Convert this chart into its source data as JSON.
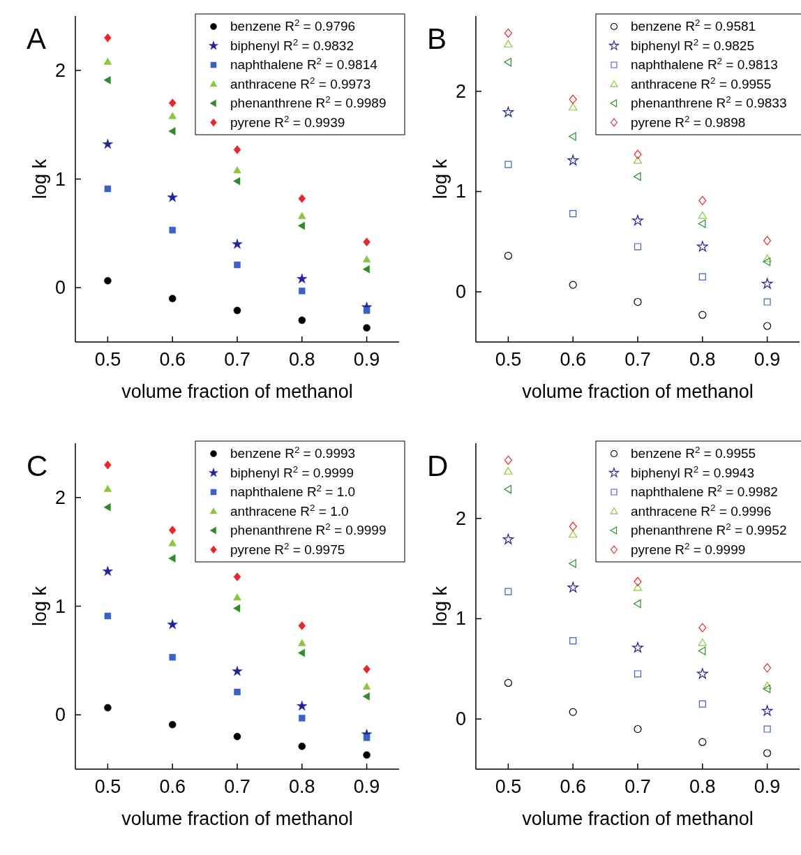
{
  "chart_data": [
    {
      "type": "scatter",
      "title": "A",
      "xlabel": "volume fraction of methanol",
      "ylabel": "log k",
      "x": [
        0.5,
        0.6,
        0.7,
        0.8,
        0.9
      ],
      "xlim": [
        0.45,
        0.95
      ],
      "xticks": [
        0.5,
        0.6,
        0.7,
        0.8,
        0.9
      ],
      "ylim": [
        -0.5,
        2.5
      ],
      "yticks": [
        0,
        1,
        2
      ],
      "legend": "top right",
      "grid": false,
      "series": [
        {
          "name": "benzene R$^{2}$ = 0.9796",
          "color": "#000000",
          "marker": "circle",
          "values": [
            0.064,
            -0.1,
            -0.21,
            -0.3,
            -0.37
          ]
        },
        {
          "name": "biphenyl R$^{2}$ = 0.9832",
          "color": "#22229a",
          "marker": "star",
          "values": [
            1.32,
            0.83,
            0.4,
            0.08,
            -0.18
          ]
        },
        {
          "name": "naphthalene R$^{2}$ = 0.9814",
          "color": "#3a62c4",
          "marker": "square",
          "values": [
            0.91,
            0.53,
            0.21,
            -0.03,
            -0.21
          ]
        },
        {
          "name": "anthracene R$^{2}$ = 0.9973",
          "color": "#8cc63f",
          "marker": "triangle",
          "values": [
            2.08,
            1.58,
            1.08,
            0.66,
            0.26
          ]
        },
        {
          "name": "phenanthrene R$^{2}$ = 0.9989",
          "color": "#2e8b2e",
          "marker": "triangle-left",
          "values": [
            1.91,
            1.44,
            0.98,
            0.57,
            0.17
          ]
        },
        {
          "name": "pyrene R$^{2}$ = 0.9939",
          "color": "#e8262b",
          "marker": "diamond",
          "values": [
            2.3,
            1.7,
            1.27,
            0.82,
            0.42
          ]
        }
      ]
    },
    {
      "type": "scatter",
      "title": "B",
      "xlabel": "volume fraction of methanol",
      "ylabel": "log k",
      "x": [
        0.5,
        0.6,
        0.7,
        0.8,
        0.9
      ],
      "xlim": [
        0.45,
        0.95
      ],
      "xticks": [
        0.5,
        0.6,
        0.7,
        0.8,
        0.9
      ],
      "ylim": [
        -0.5,
        2.75
      ],
      "yticks": [
        0,
        1,
        2
      ],
      "legend": "top right",
      "grid": false,
      "series": [
        {
          "name": "benzene R$^{2}$ = 0.9581",
          "color": "#000000",
          "marker": "circle-open",
          "values": [
            0.36,
            0.07,
            -0.1,
            -0.23,
            -0.34
          ]
        },
        {
          "name": "biphenyl R$^{2}$ = 0.9825",
          "color": "#22229a",
          "marker": "star-open",
          "values": [
            1.79,
            1.31,
            0.71,
            0.45,
            0.08
          ]
        },
        {
          "name": "naphthalene R$^{2}$ = 0.9813",
          "color": "#3a62c4",
          "marker": "square-open",
          "values": [
            1.27,
            0.78,
            0.45,
            0.15,
            -0.1
          ]
        },
        {
          "name": "anthracene R$^{2}$ = 0.9955",
          "color": "#8cc63f",
          "marker": "triangle-open",
          "values": [
            2.47,
            1.84,
            1.31,
            0.76,
            0.33
          ]
        },
        {
          "name": "phenanthrene R$^{2}$ = 0.9833",
          "color": "#2e8b2e",
          "marker": "triangle-left-open",
          "values": [
            2.29,
            1.55,
            1.15,
            0.68,
            0.3
          ]
        },
        {
          "name": "pyrene R$^{2}$ = 0.9898",
          "color": "#e8262b",
          "marker": "diamond-open",
          "values": [
            2.58,
            1.92,
            1.37,
            0.91,
            0.51
          ]
        }
      ]
    },
    {
      "type": "scatter",
      "title": "C",
      "xlabel": "volume fraction of methanol",
      "ylabel": "log k",
      "x": [
        0.5,
        0.6,
        0.7,
        0.8,
        0.9
      ],
      "xlim": [
        0.45,
        0.95
      ],
      "xticks": [
        0.5,
        0.6,
        0.7,
        0.8,
        0.9
      ],
      "ylim": [
        -0.5,
        2.5
      ],
      "yticks": [
        0,
        1,
        2
      ],
      "legend": "top right",
      "grid": false,
      "series": [
        {
          "name": "benzene R$^{2}$ = 0.9993",
          "color": "#000000",
          "marker": "circle",
          "values": [
            0.065,
            -0.09,
            -0.2,
            -0.29,
            -0.37
          ]
        },
        {
          "name": "biphenyl R$^{2}$ = 0.9999",
          "color": "#22229a",
          "marker": "star",
          "values": [
            1.32,
            0.83,
            0.4,
            0.08,
            -0.18
          ]
        },
        {
          "name": "naphthalene R$^{2}$ = 1.0",
          "color": "#3a62c4",
          "marker": "square",
          "values": [
            0.91,
            0.53,
            0.21,
            -0.03,
            -0.21
          ]
        },
        {
          "name": "anthracene R$^{2}$ = 1.0",
          "color": "#8cc63f",
          "marker": "triangle",
          "values": [
            2.08,
            1.58,
            1.08,
            0.66,
            0.26
          ]
        },
        {
          "name": "phenanthrene R$^{2}$ = 0.9999",
          "color": "#2e8b2e",
          "marker": "triangle-left",
          "values": [
            1.91,
            1.44,
            0.98,
            0.57,
            0.17
          ]
        },
        {
          "name": "pyrene R$^{2}$ = 0.9975",
          "color": "#e8262b",
          "marker": "diamond",
          "values": [
            2.3,
            1.7,
            1.27,
            0.82,
            0.42
          ]
        }
      ]
    },
    {
      "type": "scatter",
      "title": "D",
      "xlabel": "volume fraction of methanol",
      "ylabel": "log k",
      "x": [
        0.5,
        0.6,
        0.7,
        0.8,
        0.9
      ],
      "xlim": [
        0.45,
        0.95
      ],
      "xticks": [
        0.5,
        0.6,
        0.7,
        0.8,
        0.9
      ],
      "ylim": [
        -0.5,
        2.75
      ],
      "yticks": [
        0,
        1,
        2
      ],
      "legend": "top right",
      "grid": false,
      "series": [
        {
          "name": "benzene R$^{2}$ = 0.9955",
          "color": "#000000",
          "marker": "circle-open",
          "values": [
            0.36,
            0.07,
            -0.1,
            -0.23,
            -0.34
          ]
        },
        {
          "name": "biphenyl R$^{2}$ = 0.9943",
          "color": "#22229a",
          "marker": "star-open",
          "values": [
            1.79,
            1.31,
            0.71,
            0.45,
            0.08
          ]
        },
        {
          "name": "naphthalene R$^{2}$ = 0.9982",
          "color": "#3a62c4",
          "marker": "square-open",
          "values": [
            1.27,
            0.78,
            0.45,
            0.15,
            -0.1
          ]
        },
        {
          "name": "anthracene R$^{2}$ = 0.9996",
          "color": "#8cc63f",
          "marker": "triangle-open",
          "values": [
            2.47,
            1.84,
            1.31,
            0.76,
            0.33
          ]
        },
        {
          "name": "phenanthrene R$^{2}$ = 0.9952",
          "color": "#2e8b2e",
          "marker": "triangle-left-open",
          "values": [
            2.29,
            1.55,
            1.15,
            0.68,
            0.3
          ]
        },
        {
          "name": "pyrene R$^{2}$ = 0.9999",
          "color": "#e8262b",
          "marker": "diamond-open",
          "values": [
            2.58,
            1.92,
            1.37,
            0.91,
            0.51
          ]
        }
      ]
    }
  ]
}
